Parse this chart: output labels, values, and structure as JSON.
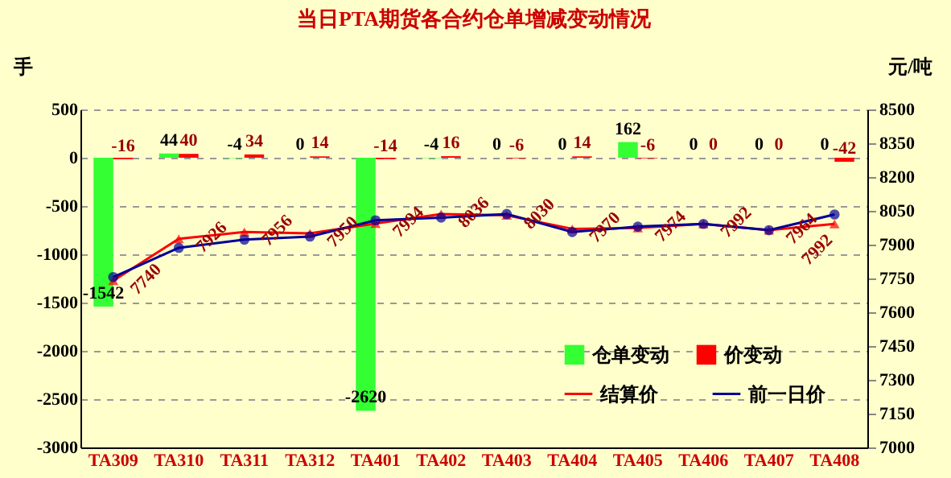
{
  "chart_data": {
    "type": "bar",
    "title": "当日PTA期货各合约仓单增减变动情况",
    "ylabel": "手",
    "y2label": "元/吨",
    "categories": [
      "TA309",
      "TA310",
      "TA311",
      "TA312",
      "TA401",
      "TA402",
      "TA403",
      "TA404",
      "TA405",
      "TA406",
      "TA407",
      "TA408"
    ],
    "series": [
      {
        "name": "仓单变动",
        "color": "#33ff33",
        "values": [
          -1542,
          44,
          -4,
          0,
          -2620,
          -4,
          0,
          0,
          162,
          0,
          0,
          0
        ],
        "value_labels": [
          "-1542",
          "44",
          "-4",
          "0",
          "-2620",
          "-4",
          "0",
          "0",
          "162",
          "0",
          "0",
          "0"
        ]
      },
      {
        "name": "价变动",
        "color": "#ff0000",
        "values": [
          -16,
          40,
          34,
          14,
          -14,
          16,
          -6,
          14,
          -6,
          0,
          0,
          -42
        ],
        "value_labels": [
          "-16",
          "40",
          "34",
          "14",
          "-14",
          "16",
          "-6",
          "14",
          "-6",
          "0",
          "0",
          "-42"
        ]
      },
      {
        "name": "结算价",
        "type": "line",
        "axis": "y2",
        "marker": "triangle",
        "color": "#ff0000",
        "values": [
          7740,
          7926,
          7956,
          7950,
          7994,
          8036,
          8030,
          7970,
          7974,
          7992,
          7964,
          7992
        ],
        "value_labels": [
          "7740",
          "7926",
          "7956",
          "7950",
          "7994",
          "8036",
          "8030",
          "7970",
          "7974",
          "7992",
          "7964",
          "7992"
        ]
      },
      {
        "name": "前一日价",
        "type": "line",
        "axis": "y2",
        "marker": "circle",
        "color": "#000099",
        "values": [
          7756,
          7886,
          7922,
          7936,
          8008,
          8020,
          8036,
          7956,
          7980,
          7992,
          7964,
          8034
        ]
      }
    ],
    "ylim": [
      -3000,
      500
    ],
    "yticks": [
      -3000,
      -2500,
      -2000,
      -1500,
      -1000,
      -500,
      0,
      500
    ],
    "y2lim": [
      7000,
      8500
    ],
    "y2ticks": [
      7000,
      7150,
      7300,
      7450,
      7600,
      7750,
      7900,
      8050,
      8200,
      8350,
      8500
    ],
    "grid": "y",
    "legend": "right"
  }
}
